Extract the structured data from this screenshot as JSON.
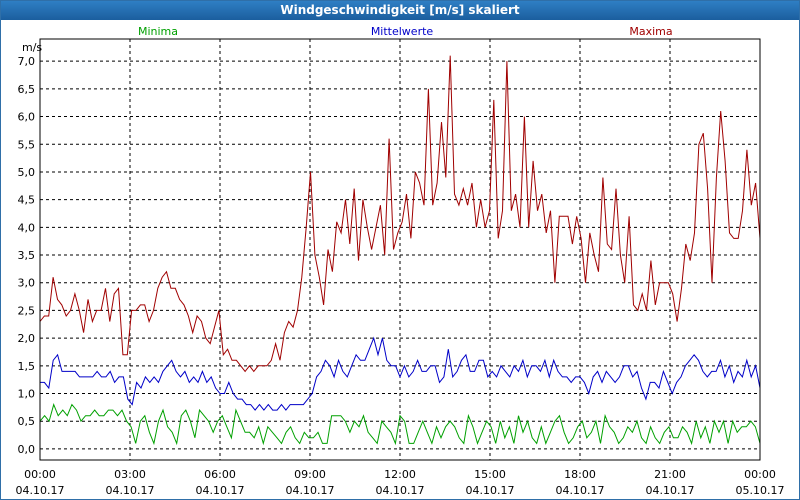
{
  "window": {
    "title": "Windgeschwindigkeit [m/s] skaliert"
  },
  "colors": {
    "min": "#00a000",
    "mean": "#0000c8",
    "max": "#a00000",
    "grid": "#000000"
  },
  "chart_data": {
    "type": "line",
    "title": "Windgeschwindigkeit [m/s] skaliert",
    "ylabel": "m/s",
    "xlabel": "",
    "ylim": [
      -0.2,
      7.4
    ],
    "xlim": [
      0,
      24
    ],
    "grid": true,
    "legend_placement": "top",
    "y_ticks": [
      "0,0",
      "0,5",
      "1,0",
      "1,5",
      "2,0",
      "2,5",
      "3,0",
      "3,5",
      "4,0",
      "4,5",
      "5,0",
      "5,5",
      "6,0",
      "6,5",
      "7,0"
    ],
    "y_tick_values": [
      0,
      0.5,
      1,
      1.5,
      2,
      2.5,
      3,
      3.5,
      4,
      4.5,
      5,
      5.5,
      6,
      6.5,
      7
    ],
    "x_ticks": [
      {
        "time": "00:00",
        "date": "04.10.17",
        "hour": 0
      },
      {
        "time": "03:00",
        "date": "04.10.17",
        "hour": 3
      },
      {
        "time": "06:00",
        "date": "04.10.17",
        "hour": 6
      },
      {
        "time": "09:00",
        "date": "04.10.17",
        "hour": 9
      },
      {
        "time": "12:00",
        "date": "04.10.17",
        "hour": 12
      },
      {
        "time": "15:00",
        "date": "04.10.17",
        "hour": 15
      },
      {
        "time": "18:00",
        "date": "04.10.17",
        "hour": 18
      },
      {
        "time": "21:00",
        "date": "04.10.17",
        "hour": 21
      },
      {
        "time": "00:00",
        "date": "05.10.17",
        "hour": 24
      }
    ],
    "series": [
      {
        "name": "Minima",
        "color": "#00a000",
        "values": [
          0.5,
          0.6,
          0.5,
          0.8,
          0.6,
          0.7,
          0.6,
          0.8,
          0.7,
          0.5,
          0.6,
          0.6,
          0.7,
          0.6,
          0.6,
          0.7,
          0.7,
          0.6,
          0.7,
          0.5,
          0.4,
          0.1,
          0.5,
          0.6,
          0.3,
          0.1,
          0.5,
          0.7,
          0.4,
          0.3,
          0.1,
          0.6,
          0.7,
          0.5,
          0.2,
          0.7,
          0.6,
          0.5,
          0.3,
          0.5,
          0.6,
          0.4,
          0.2,
          0.7,
          0.5,
          0.3,
          0.3,
          0.2,
          0.4,
          0.1,
          0.4,
          0.3,
          0.2,
          0.1,
          0.3,
          0.4,
          0.2,
          0.1,
          0.3,
          0.2,
          0.2,
          0.3,
          0.1,
          0.1,
          0.6,
          0.6,
          0.6,
          0.5,
          0.3,
          0.5,
          0.4,
          0.6,
          0.3,
          0.2,
          0.1,
          0.5,
          0.4,
          0.3,
          0.1,
          0.6,
          0.5,
          0.1,
          0.1,
          0.3,
          0.5,
          0.3,
          0.1,
          0.4,
          0.2,
          0.4,
          0.5,
          0.4,
          0.2,
          0.1,
          0.6,
          0.4,
          0.1,
          0.3,
          0.5,
          0.4,
          0.1,
          0.5,
          0.2,
          0.4,
          0.1,
          0.6,
          0.3,
          0.5,
          0.2,
          0.1,
          0.4,
          0.1,
          0.3,
          0.5,
          0.6,
          0.3,
          0.1,
          0.2,
          0.4,
          0.5,
          0.2,
          0.3,
          0.5,
          0.1,
          0.6,
          0.4,
          0.3,
          0.1,
          0.2,
          0.4,
          0.3,
          0.5,
          0.2,
          0.1,
          0.4,
          0.2,
          0.1,
          0.3,
          0.4,
          0.2,
          0.2,
          0.4,
          0.3,
          0.1,
          0.5,
          0.2,
          0.4,
          0.1,
          0.5,
          0.3,
          0.5,
          0.1,
          0.5,
          0.3,
          0.4,
          0.4,
          0.5,
          0.4,
          0.1
        ]
      },
      {
        "name": "Mittelwerte",
        "color": "#0000c8",
        "values": [
          1.2,
          1.2,
          1.1,
          1.6,
          1.7,
          1.4,
          1.4,
          1.4,
          1.4,
          1.3,
          1.3,
          1.3,
          1.3,
          1.4,
          1.3,
          1.3,
          1.4,
          1.2,
          1.3,
          1.3,
          0.9,
          0.8,
          1.2,
          1.1,
          1.3,
          1.2,
          1.3,
          1.2,
          1.4,
          1.5,
          1.6,
          1.4,
          1.3,
          1.4,
          1.2,
          1.3,
          1.2,
          1.4,
          1.2,
          1.3,
          1.1,
          1.0,
          1.0,
          1.2,
          1.0,
          0.9,
          0.9,
          0.8,
          0.8,
          0.7,
          0.8,
          0.7,
          0.8,
          0.7,
          0.7,
          0.8,
          0.7,
          0.8,
          0.8,
          0.8,
          0.8,
          0.9,
          1.0,
          1.3,
          1.4,
          1.6,
          1.5,
          1.3,
          1.6,
          1.4,
          1.3,
          1.5,
          1.7,
          1.6,
          1.6,
          1.8,
          2.0,
          1.7,
          2.0,
          1.6,
          1.5,
          1.5,
          1.3,
          1.5,
          1.3,
          1.4,
          1.6,
          1.4,
          1.4,
          1.5,
          1.5,
          1.2,
          1.3,
          1.8,
          1.3,
          1.4,
          1.6,
          1.7,
          1.4,
          1.4,
          1.6,
          1.6,
          1.3,
          1.4,
          1.3,
          1.5,
          1.4,
          1.3,
          1.5,
          1.4,
          1.6,
          1.3,
          1.5,
          1.5,
          1.4,
          1.6,
          1.3,
          1.6,
          1.4,
          1.3,
          1.3,
          1.2,
          1.3,
          1.3,
          1.2,
          1.0,
          1.3,
          1.4,
          1.2,
          1.4,
          1.3,
          1.2,
          1.3,
          1.5,
          1.5,
          1.3,
          1.4,
          1.1,
          0.9,
          1.2,
          1.2,
          1.1,
          1.4,
          1.2,
          1.0,
          1.2,
          1.3,
          1.5,
          1.6,
          1.7,
          1.6,
          1.4,
          1.3,
          1.4,
          1.4,
          1.6,
          1.3,
          1.5,
          1.2,
          1.4,
          1.3,
          1.6,
          1.3,
          1.5,
          1.1
        ]
      },
      {
        "name": "Maxima",
        "color": "#a00000",
        "values": [
          2.3,
          2.4,
          2.4,
          3.1,
          2.7,
          2.6,
          2.4,
          2.5,
          2.8,
          2.5,
          2.1,
          2.7,
          2.3,
          2.5,
          2.5,
          2.9,
          2.3,
          2.8,
          2.9,
          1.7,
          1.7,
          2.5,
          2.5,
          2.6,
          2.6,
          2.3,
          2.5,
          2.9,
          3.1,
          3.2,
          2.9,
          2.9,
          2.7,
          2.6,
          2.4,
          2.1,
          2.4,
          2.3,
          2.0,
          1.9,
          2.2,
          2.5,
          1.7,
          1.8,
          1.6,
          1.6,
          1.5,
          1.4,
          1.5,
          1.4,
          1.5,
          1.5,
          1.5,
          1.6,
          1.9,
          1.6,
          2.1,
          2.3,
          2.2,
          2.5,
          3.1,
          4.0,
          5.0,
          3.5,
          3.1,
          2.6,
          3.6,
          3.2,
          4.1,
          3.9,
          4.5,
          3.7,
          4.7,
          3.4,
          4.5,
          4.0,
          3.6,
          4.0,
          4.4,
          3.5,
          5.6,
          3.6,
          3.9,
          4.1,
          4.6,
          3.8,
          5.0,
          4.8,
          4.4,
          6.5,
          4.4,
          4.8,
          5.9,
          4.9,
          7.1,
          4.6,
          4.4,
          4.7,
          4.4,
          4.8,
          4.0,
          4.5,
          4.0,
          4.3,
          6.3,
          3.8,
          4.3,
          7.0,
          4.3,
          4.6,
          4.0,
          6.0,
          4.0,
          5.2,
          4.3,
          4.6,
          3.9,
          4.3,
          3.0,
          4.2,
          4.2,
          4.2,
          3.7,
          4.2,
          3.8,
          3.0,
          3.9,
          3.5,
          3.2,
          4.9,
          3.7,
          3.6,
          4.7,
          3.5,
          3.0,
          4.2,
          2.6,
          2.5,
          2.8,
          2.5,
          3.4,
          2.6,
          3.0,
          3.0,
          3.0,
          2.8,
          2.3,
          2.9,
          3.7,
          3.4,
          3.9,
          5.5,
          5.7,
          4.7,
          3.0,
          4.9,
          6.1,
          5.2,
          3.9,
          3.8,
          3.8,
          4.3,
          5.4,
          4.4,
          4.8,
          3.8
        ]
      }
    ]
  }
}
